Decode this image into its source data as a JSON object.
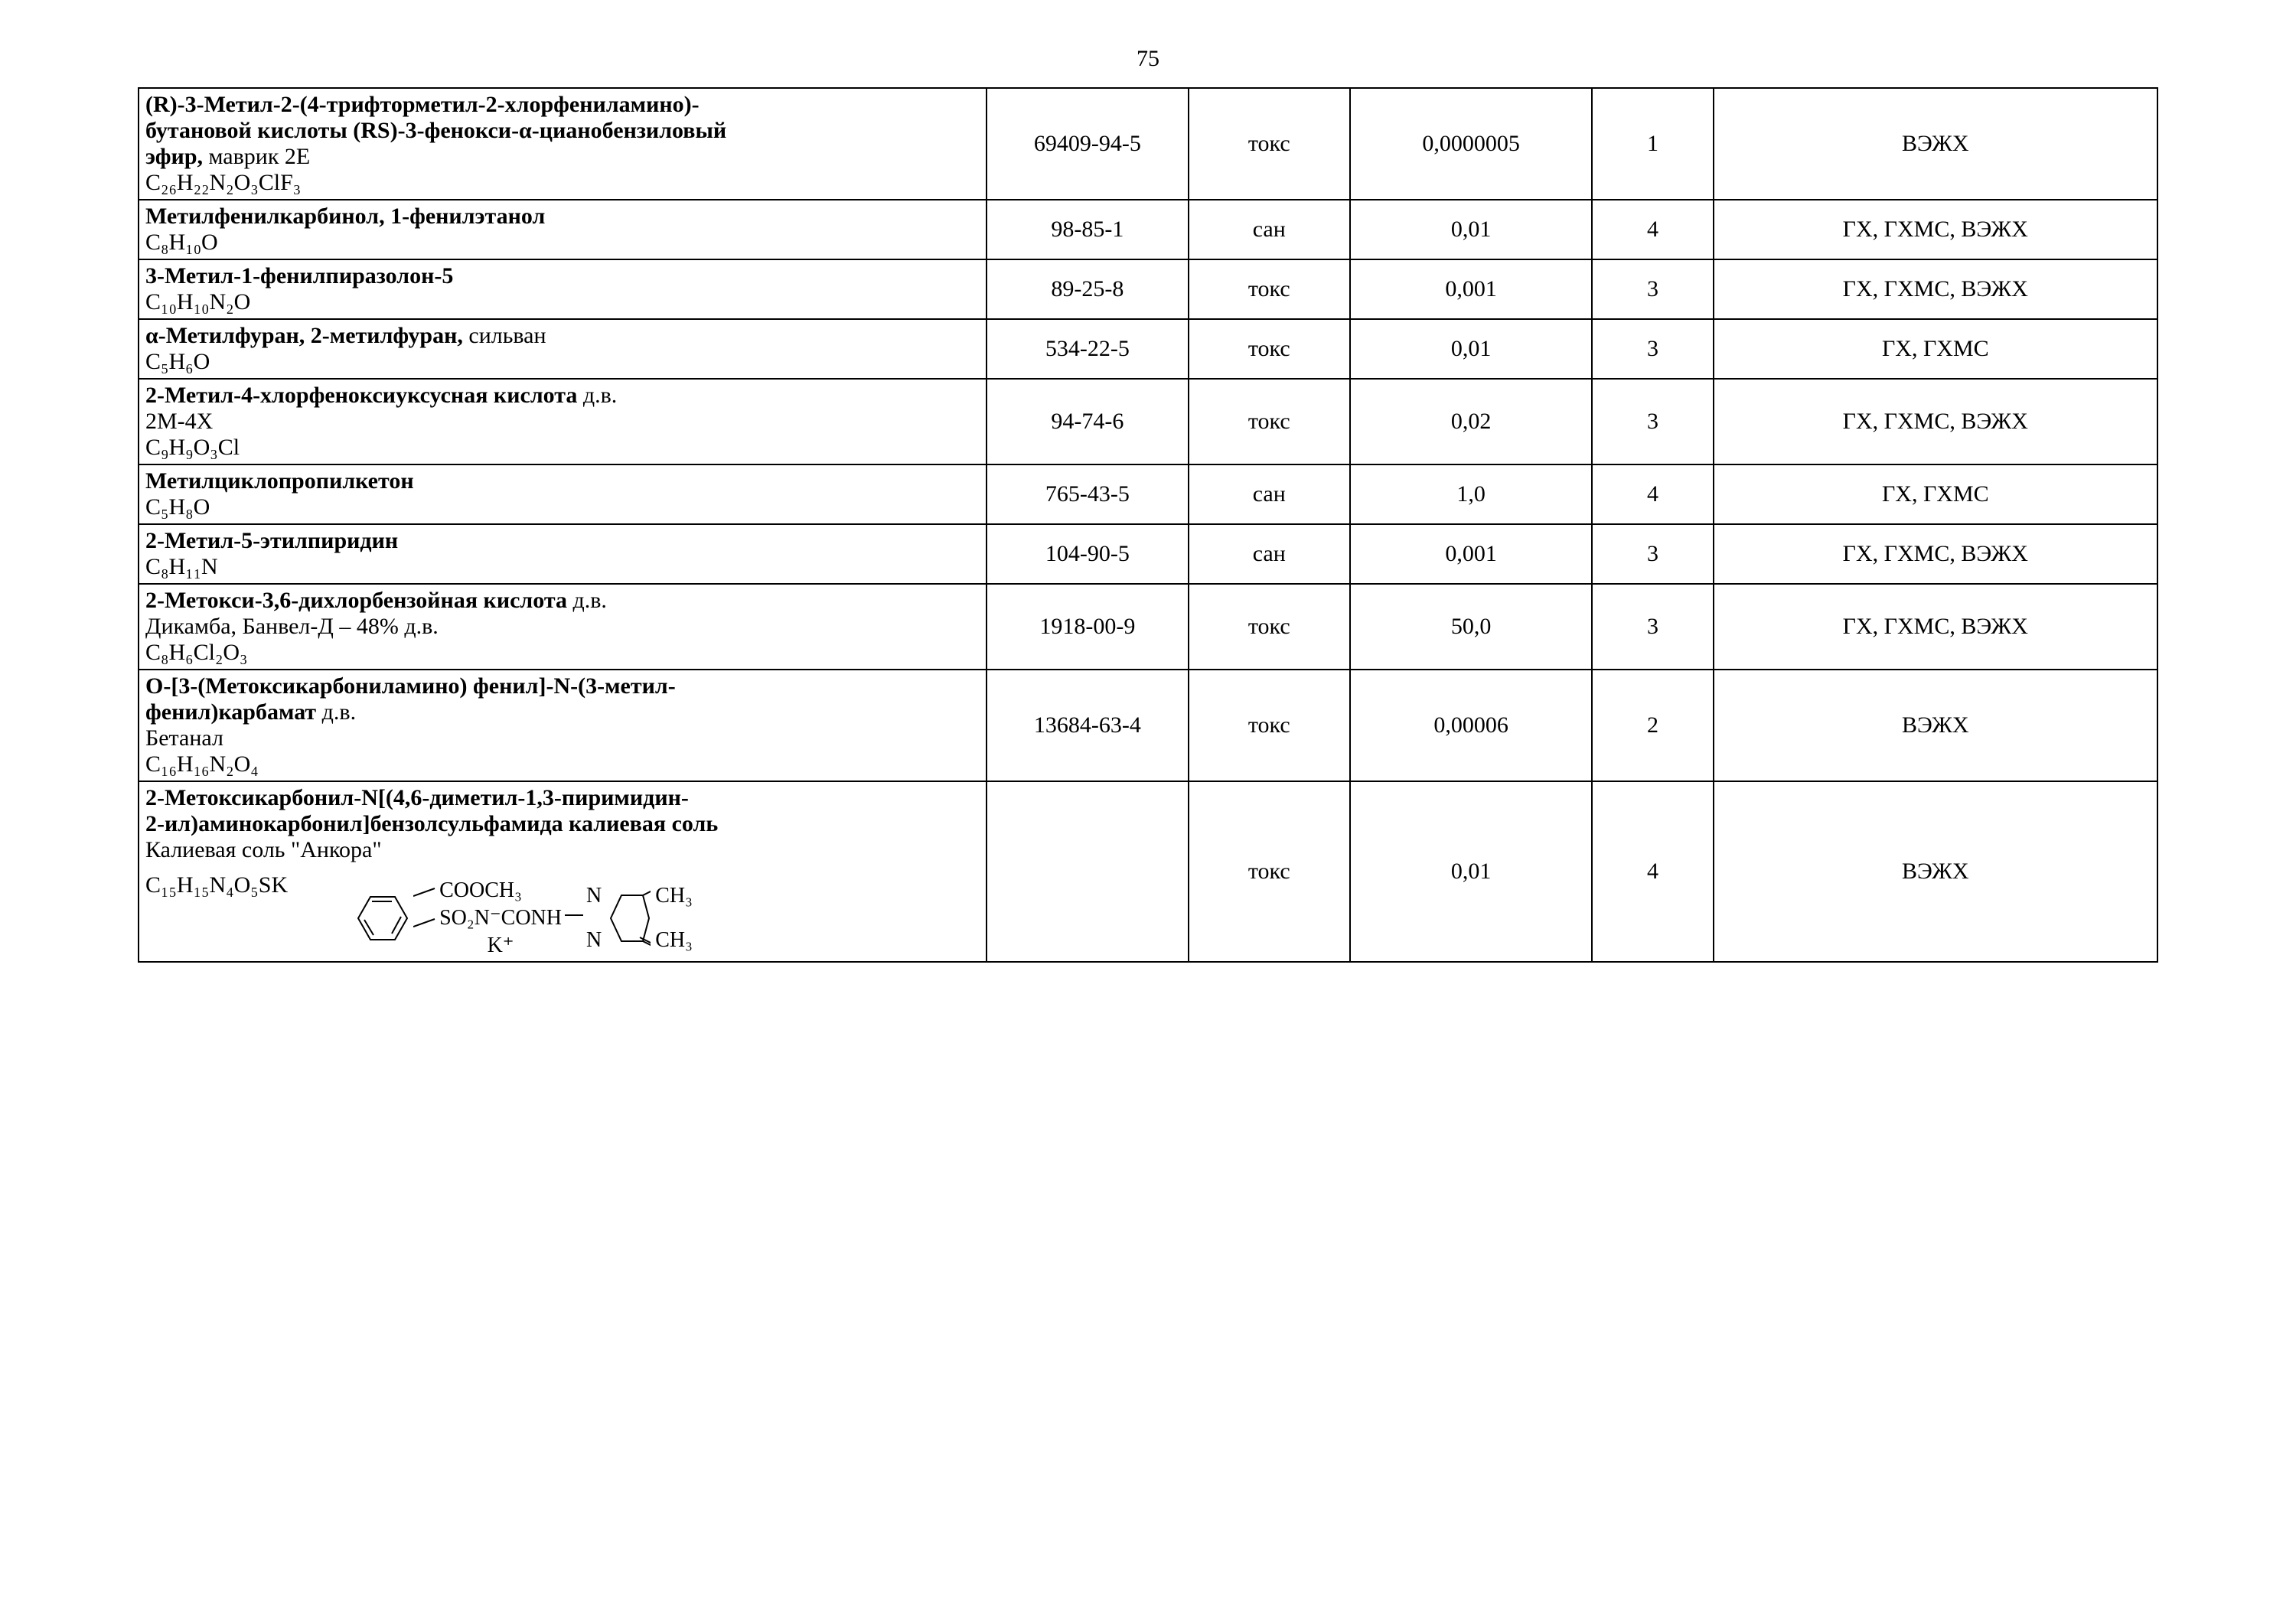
{
  "page_number": "75",
  "rows": [
    {
      "name_parts": [
        {
          "b": true,
          "t": "(R)-3-Метил-2-(4-трифторметил-2-хлорфениламино)-"
        },
        {
          "b": true,
          "t": "бутановой кислоты (RS)-3-фенокси-α-цианобензиловый"
        },
        {
          "b": false,
          "prefix_b": "эфир, ",
          "t": "маврик 2Е"
        }
      ],
      "formula": "C₂₆H₂₂N₂O₃ClF₃",
      "cas": "69409-94-5",
      "ind": "токс",
      "pdk": "0,0000005",
      "cls": "1",
      "met": "ВЭЖХ"
    },
    {
      "name_parts": [
        {
          "b": true,
          "t": "Метилфенилкарбинол, 1-фенилэтанол"
        }
      ],
      "formula": "C₈H₁₀O",
      "cas": "98-85-1",
      "ind": "сан",
      "pdk": "0,01",
      "cls": "4",
      "met": "ГХ, ГХМС, ВЭЖХ"
    },
    {
      "name_parts": [
        {
          "b": true,
          "t": "3-Метил-1-фенилпиразолон-5"
        }
      ],
      "formula": "C₁₀H₁₀N₂O",
      "cas": "89-25-8",
      "ind": "токс",
      "pdk": "0,001",
      "cls": "3",
      "met": "ГХ, ГХМС, ВЭЖХ"
    },
    {
      "name_parts": [
        {
          "b": false,
          "prefix_b": "α-Метилфуран, 2-метилфуран, ",
          "t": "сильван"
        }
      ],
      "formula": "C₅H₆O",
      "cas": "534-22-5",
      "ind": "токс",
      "pdk": "0,01",
      "cls": "3",
      "met": "ГХ, ГХМС"
    },
    {
      "name_parts": [
        {
          "b": false,
          "prefix_b": "2-Метил-4-хлорфеноксиуксусная кислота",
          "t": "   д.в."
        },
        {
          "b": false,
          "t": "2М-4Х"
        }
      ],
      "formula": "C₉H₉O₃Cl",
      "cas": "94-74-6",
      "ind": "токс",
      "pdk": "0,02",
      "cls": "3",
      "met": "ГХ, ГХМС, ВЭЖХ"
    },
    {
      "name_parts": [
        {
          "b": true,
          "t": "Метилциклопропилкетон"
        }
      ],
      "formula": "C₅H₈O",
      "cas": "765-43-5",
      "ind": "сан",
      "pdk": "1,0",
      "cls": "4",
      "met": "ГХ, ГХМС"
    },
    {
      "name_parts": [
        {
          "b": true,
          "t": "2-Метил-5-этилпиридин"
        }
      ],
      "formula": "C₈H₁₁N",
      "cas": "104-90-5",
      "ind": "сан",
      "pdk": "0,001",
      "cls": "3",
      "met": "ГХ, ГХМС, ВЭЖХ"
    },
    {
      "name_parts": [
        {
          "b": false,
          "prefix_b": "2-Метокси-3,6-дихлорбензойная кислота",
          "t": "  д.в."
        },
        {
          "b": false,
          "t": "Дикамба, Банвел-Д – 48% д.в."
        }
      ],
      "formula": "C₈H₆Cl₂O₃",
      "cas": "1918-00-9",
      "ind": "токс",
      "pdk": "50,0",
      "cls": "3",
      "met": "ГХ, ГХМС, ВЭЖХ"
    },
    {
      "name_parts": [
        {
          "b": true,
          "t": "О-[3-(Метоксикарбониламино) фенил]-N-(3-метил-"
        },
        {
          "b": false,
          "prefix_b": "фенил)карбамат",
          "t": "   д.в."
        },
        {
          "b": false,
          "t": "Бетанал"
        }
      ],
      "formula": "C₁₆H₁₆N₂O₄",
      "cas": "13684-63-4",
      "ind": "токс",
      "pdk": "0,00006",
      "cls": "2",
      "met": "ВЭЖХ"
    },
    {
      "name_parts": [
        {
          "b": true,
          "t": "2-Метоксикарбонил-N[(4,6-диметил-1,3-пиримидин-"
        },
        {
          "b": true,
          "t": "2-ил)аминокарбонил]бензолсульфамида калиевая соль"
        },
        {
          "b": false,
          "t": "Калиевая соль  \"Анкора\""
        }
      ],
      "formula": "C₁₅H₁₅N₄O₅SK",
      "diagram": {
        "cooch3": "COOCH₃",
        "so2n": "SO₂N⁻CONH",
        "kplus": "K⁺",
        "n1": "N",
        "n2": "N",
        "ch3_1": "CH₃",
        "ch3_2": "CH₃"
      },
      "cas": "",
      "ind": "токс",
      "pdk": "0,01",
      "cls": "4",
      "met": "ВЭЖХ"
    }
  ],
  "colors": {
    "text": "#000000",
    "border": "#000000",
    "background": "#ffffff"
  },
  "fonts": {
    "family": "Times New Roman",
    "size_pt": 12
  }
}
